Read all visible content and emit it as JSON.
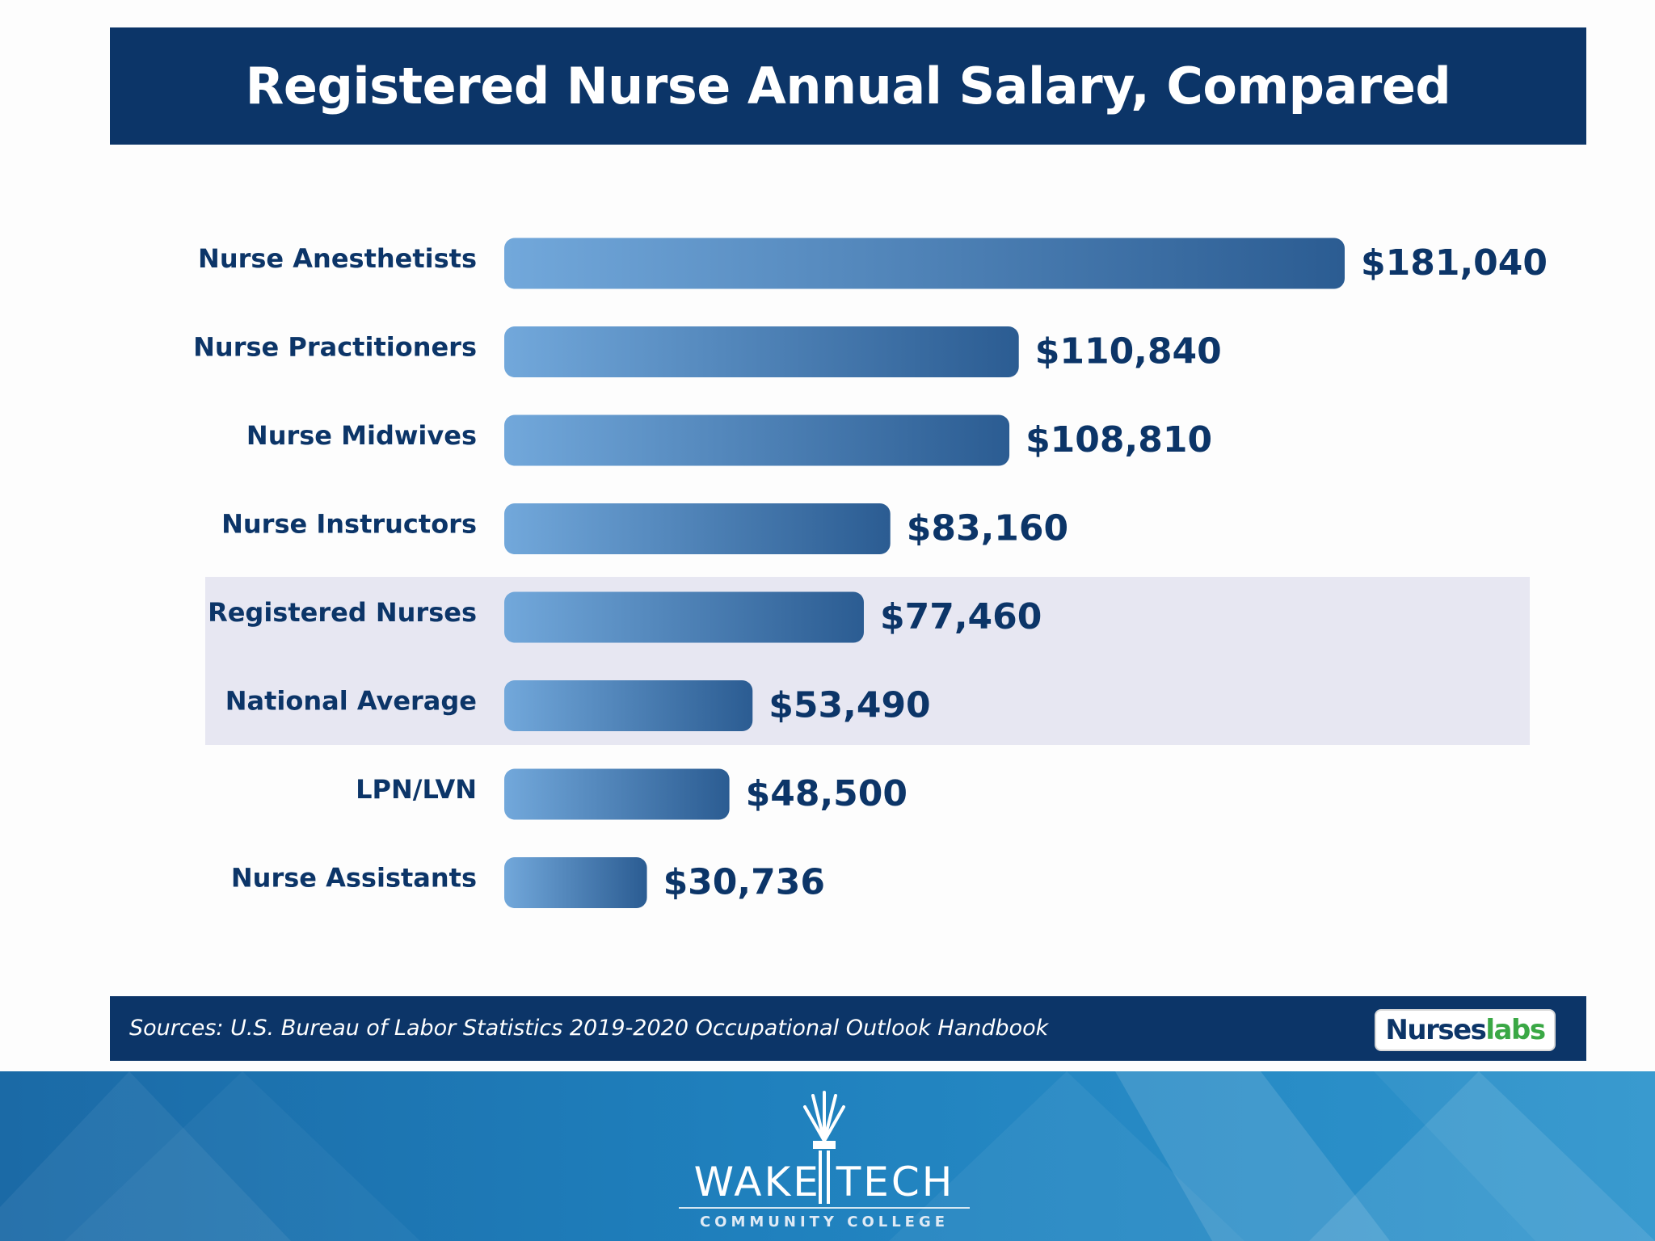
{
  "title": "Registered Nurse Annual Salary, Compared",
  "colors": {
    "banner": "#0c3568",
    "bar_light": "#72a8db",
    "bar_dark": "#2b5c92",
    "label_text": "#0c3568",
    "highlight_band": "#e7e7f2",
    "logo_green": "#3aa845",
    "strip_blue": "#1f80bd"
  },
  "chart_data": {
    "type": "bar",
    "orientation": "horizontal",
    "categories": [
      "Nurse Anesthetists",
      "Nurse Practitioners",
      "Nurse Midwives",
      "Nurse Instructors",
      "Registered Nurses",
      "National Average",
      "LPN/LVN",
      "Nurse Assistants"
    ],
    "values": [
      181040,
      110840,
      108810,
      83160,
      77460,
      53490,
      48500,
      30736
    ],
    "value_labels": [
      "$181,040",
      "$110,840",
      "$108,810",
      "$83,160",
      "$77,460",
      "$53,490",
      "$48,500",
      "$30,736"
    ],
    "highlighted_categories": [
      "Registered Nurses",
      "National Average"
    ],
    "title": "Registered Nurse Annual Salary, Compared",
    "xlabel": "",
    "ylabel": "",
    "grid": false,
    "legend": "none"
  },
  "footer": {
    "source": "Sources: U.S. Bureau of Labor Statistics 2019-2020 Occupational Outlook Handbook",
    "logo_part_a": "Nurses",
    "logo_part_b": "labs"
  },
  "college": {
    "name": "WAKE TECH",
    "subtitle": "COMMUNITY COLLEGE"
  }
}
